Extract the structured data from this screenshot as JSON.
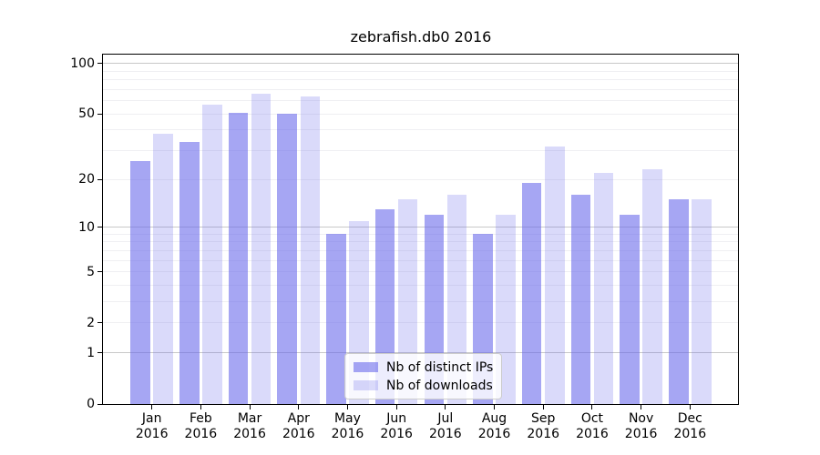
{
  "chart_data": {
    "type": "bar",
    "title": "zebrafish.db0 2016",
    "year_label": "2016",
    "categories": [
      "Jan",
      "Feb",
      "Mar",
      "Apr",
      "May",
      "Jun",
      "Jul",
      "Aug",
      "Sep",
      "Oct",
      "Nov",
      "Dec"
    ],
    "series": [
      {
        "name": "Nb of distinct IPs",
        "color": "#6666ea",
        "alpha": 0.58,
        "values": [
          26,
          34,
          51,
          50,
          9,
          13,
          12,
          9,
          19,
          16,
          12,
          15
        ]
      },
      {
        "name": "Nb of downloads",
        "color": "#6666ea",
        "alpha": 0.24,
        "values": [
          38,
          57,
          66,
          64,
          11,
          15,
          16,
          12,
          32,
          22,
          23,
          15
        ]
      }
    ],
    "xlabel": "",
    "ylabel": "",
    "y_axis": {
      "scale": "log1p",
      "ticks": [
        0,
        1,
        2,
        5,
        10,
        20,
        50,
        100
      ],
      "major_gridlines": [
        1,
        10,
        100
      ],
      "minor_gridlines": [
        2,
        3,
        4,
        5,
        6,
        7,
        8,
        9,
        20,
        30,
        40,
        50,
        60,
        70,
        80,
        90
      ],
      "ylim": [
        0,
        113
      ]
    },
    "grid": true,
    "legend_position": "lower-center-inside"
  },
  "colors": {
    "background": "#ffffff",
    "axis": "#000000",
    "major_gridline": "#c8c8c8",
    "minor_gridline": "#efeff2",
    "legend_border": "#cccccc"
  }
}
